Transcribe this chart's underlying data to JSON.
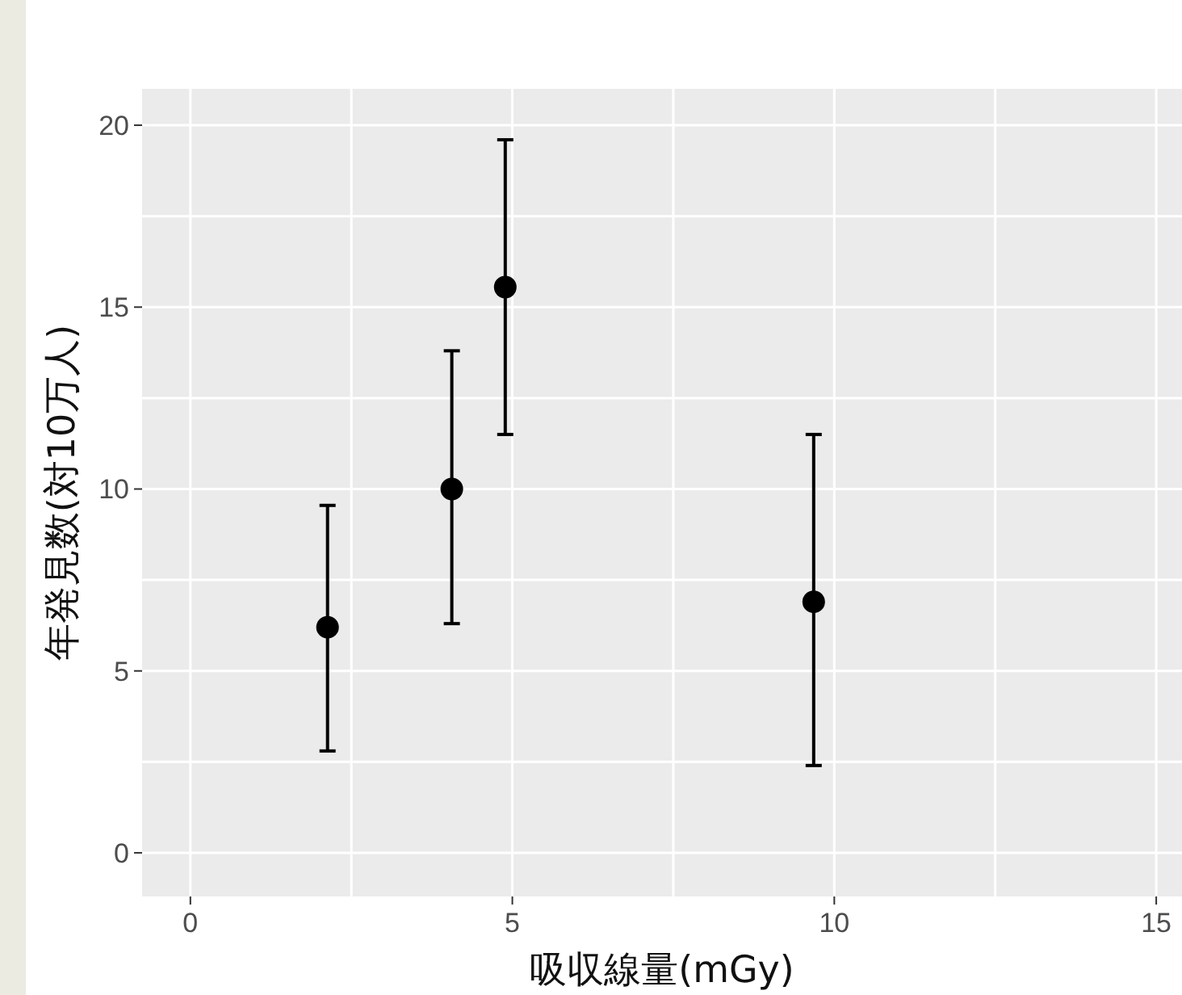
{
  "chart_data": {
    "type": "scatter",
    "xlabel": "吸収線量(mGy)",
    "ylabel": "年発見数(対10万人)",
    "x": [
      2.13,
      4.06,
      4.89,
      9.68
    ],
    "series": [
      {
        "color": "#000000",
        "values": [
          6.2,
          10.0,
          15.55,
          6.9
        ],
        "errors": [
          [
            2.8,
            9.55
          ],
          [
            6.3,
            13.8
          ],
          [
            11.5,
            19.6
          ],
          [
            2.4,
            11.5
          ]
        ]
      }
    ],
    "xlim": [
      -0.75,
      15.4
    ],
    "xticks": [
      0,
      {
        "value": 2.5,
        "label": null
      },
      5,
      {
        "value": 7.5,
        "label": null
      },
      10,
      {
        "value": 12.5,
        "label": null
      },
      15
    ],
    "ylim": [
      -1.2,
      21
    ],
    "yticks": [
      0,
      {
        "value": 2.5,
        "label": null
      },
      5,
      {
        "value": 7.5,
        "label": null
      },
      10,
      {
        "value": 12.5,
        "label": null
      },
      15,
      {
        "value": 17.5,
        "label": null
      },
      20
    ],
    "grid": true,
    "marker": "circle",
    "legend": false
  }
}
